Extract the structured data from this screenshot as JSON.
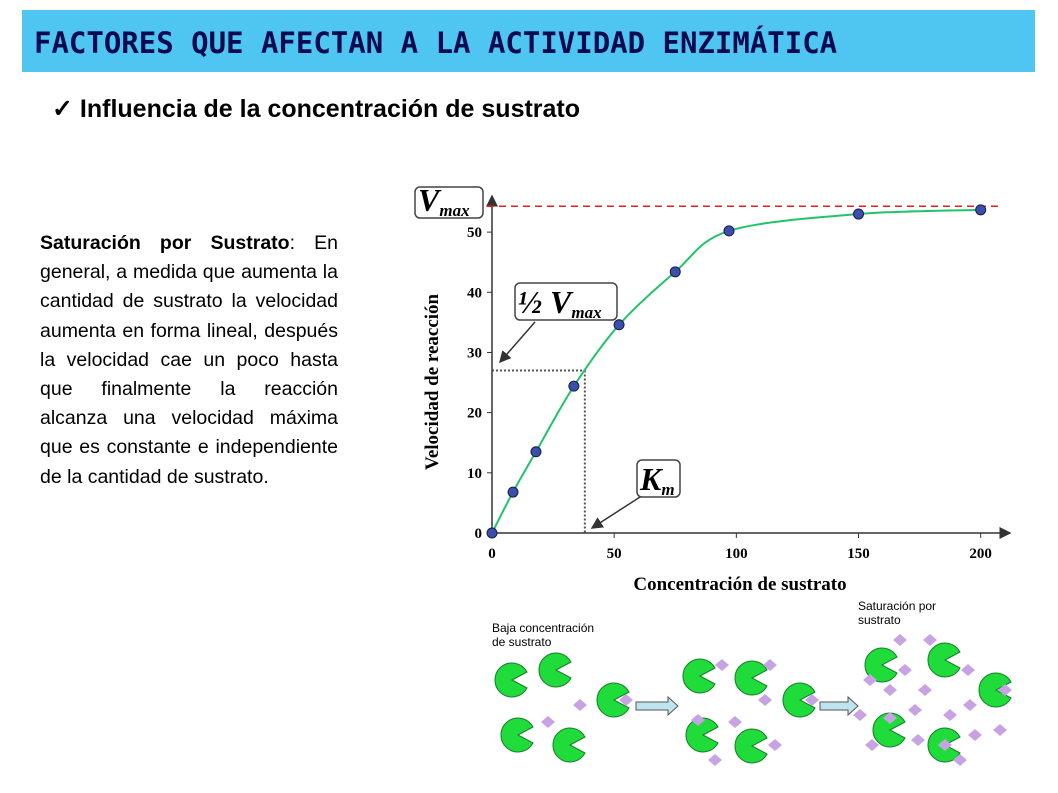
{
  "header": {
    "title": "FACTORES QUE AFECTAN A LA ACTIVIDAD ENZIMÁTICA",
    "subtitle": "Influencia de la concentración de sustrato"
  },
  "text": {
    "term": "Saturación por Sustrato",
    "body": ": En general, a medida que aumenta la cantidad de sustrato la velocidad aumenta en forma lineal, después la velocidad cae un poco hasta que finalmente la reacción alcanza una velocidad máxima que es constante e independiente de la cantidad de sustrato."
  },
  "chart_data": {
    "type": "scatter",
    "x_label": "Concentración de sustrato",
    "y_label": "Velocidad de reacción",
    "x": [
      0,
      8.6,
      18,
      33.5,
      52,
      75,
      97,
      150,
      200
    ],
    "series": [
      {
        "color": "#3a4fa8",
        "line_color": "#22c46a",
        "values": [
          0,
          6.8,
          13.5,
          24.4,
          34.6,
          43.4,
          50.2,
          53,
          53.7
        ]
      }
    ],
    "xlim": [
      0,
      212
    ],
    "ylim": [
      0,
      56
    ],
    "xticks": [
      0,
      50,
      100,
      150,
      200
    ],
    "yticks": [
      0,
      10,
      20,
      30,
      40,
      50
    ],
    "vmax": 54.3,
    "half_vmax": 27,
    "km": 38,
    "annotations": [
      {
        "main": "V",
        "sub": "max"
      },
      {
        "main": "½ V",
        "sub": "max"
      },
      {
        "main": "K",
        "sub": "m"
      }
    ]
  },
  "diagram": {
    "low_caption": [
      "Baja concentración",
      "de sustrato"
    ],
    "sat_caption": [
      "Saturación por",
      "sustrato"
    ]
  }
}
